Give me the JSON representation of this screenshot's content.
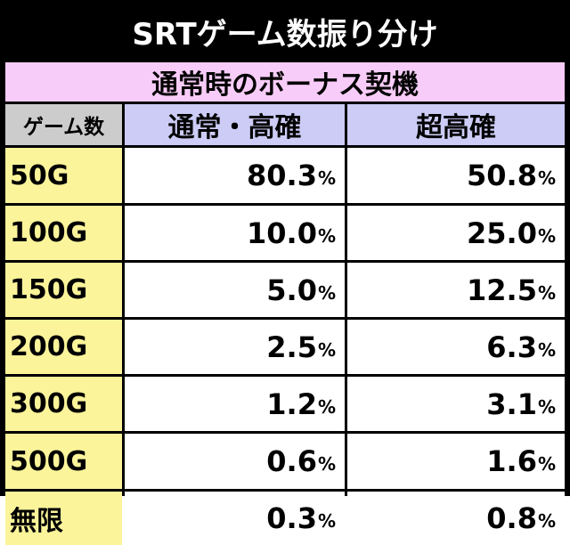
{
  "title": "SRTゲーム数振り分け",
  "section": "通常時のボーナス契機",
  "columns": {
    "games": "ゲーム数",
    "normal_high": "通常・高確",
    "super_high": "超高確"
  },
  "percent_sign": "%",
  "rows": [
    {
      "label": "50G",
      "normal_high": "80.3",
      "super_high": "50.8"
    },
    {
      "label": "100G",
      "normal_high": "10.0",
      "super_high": "25.0"
    },
    {
      "label": "150G",
      "normal_high": "5.0",
      "super_high": "12.5"
    },
    {
      "label": "200G",
      "normal_high": "2.5",
      "super_high": "6.3"
    },
    {
      "label": "300G",
      "normal_high": "1.2",
      "super_high": "3.1"
    },
    {
      "label": "500G",
      "normal_high": "0.6",
      "super_high": "1.6"
    },
    {
      "label": "無限",
      "normal_high": "0.3",
      "super_high": "0.8"
    }
  ],
  "colors": {
    "background": "#000000",
    "section_bg": "#f8ccf8",
    "games_header_bg": "#cccccc",
    "column_header_bg": "#ccccf6",
    "row_label_bg": "#fbf49a",
    "value_bg": "#ffffff"
  }
}
